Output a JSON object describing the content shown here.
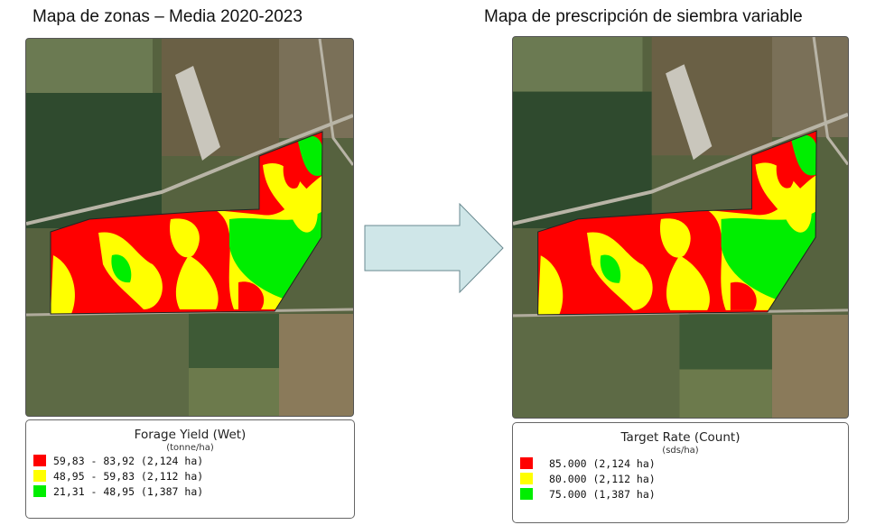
{
  "left": {
    "title": "Mapa de zonas – Media 2020-2023",
    "legend": {
      "title": "Forage Yield (Wet)",
      "unit": "(tonne/ha)",
      "items": [
        {
          "label": "59,83 - 83,92 (2,124 ha)",
          "color": "#ff0000"
        },
        {
          "label": "48,95 - 59,83 (2,112 ha)",
          "color": "#ffff00"
        },
        {
          "label": "21,31 - 48,95 (1,387 ha)",
          "color": "#00ee00"
        }
      ]
    }
  },
  "right": {
    "title": "Mapa de prescripción de siembra variable",
    "legend": {
      "title": "Target Rate (Count)",
      "unit": "(sds/ha)",
      "items": [
        {
          "label": "85.000 (2,124 ha)",
          "color": "#ff0000"
        },
        {
          "label": "80.000 (2,112 ha)",
          "color": "#ffff00"
        },
        {
          "label": "75.000 (1,387 ha)",
          "color": "#00ee00"
        }
      ]
    }
  },
  "arrow": {
    "color": "#cfe6e8",
    "icon": "arrow-right-icon"
  }
}
